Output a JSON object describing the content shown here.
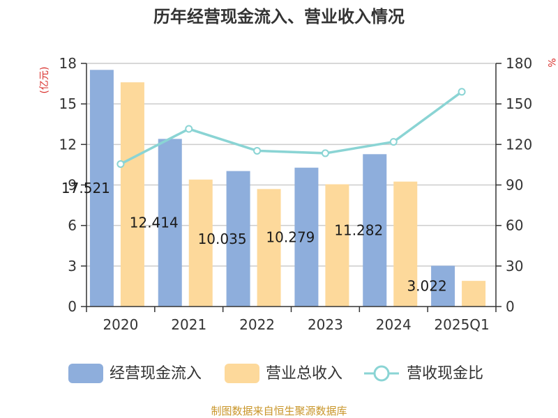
{
  "chart_data": {
    "type": "bar",
    "title": "历年经营现金流入、营业收入情况",
    "categories": [
      "2020",
      "2021",
      "2022",
      "2023",
      "2024",
      "2025Q1"
    ],
    "series": [
      {
        "name": "经营现金流入",
        "type": "bar",
        "axis": "left",
        "color": "#8eaedc",
        "values": [
          17.52,
          12.41,
          10.03,
          10.28,
          11.28,
          3.02
        ],
        "labels": [
          "17.521",
          "12.414",
          "10.035",
          "10.279",
          "11.282",
          "3.022"
        ]
      },
      {
        "name": "营业总收入",
        "type": "bar",
        "axis": "left",
        "color": "#fdd99b",
        "values": [
          16.6,
          9.4,
          8.7,
          9.05,
          9.25,
          1.9
        ]
      },
      {
        "name": "营收现金比",
        "type": "line",
        "axis": "right",
        "color": "#8ad4d4",
        "values": [
          105.5,
          131.5,
          115.3,
          113.5,
          121.9,
          159.0
        ]
      }
    ],
    "yLeft": {
      "label": "(亿元)",
      "min": 0,
      "max": 18,
      "ticks": [
        0,
        3,
        6,
        9,
        12,
        15,
        18
      ],
      "color": "#d9302c"
    },
    "yRight": {
      "label": "%",
      "min": 0,
      "max": 180,
      "ticks": [
        0,
        30,
        60,
        90,
        120,
        150,
        180
      ],
      "color": "#d9302c"
    },
    "grid": true,
    "legend_position": "bottom",
    "source": "制图数据来自恒生聚源数据库"
  }
}
